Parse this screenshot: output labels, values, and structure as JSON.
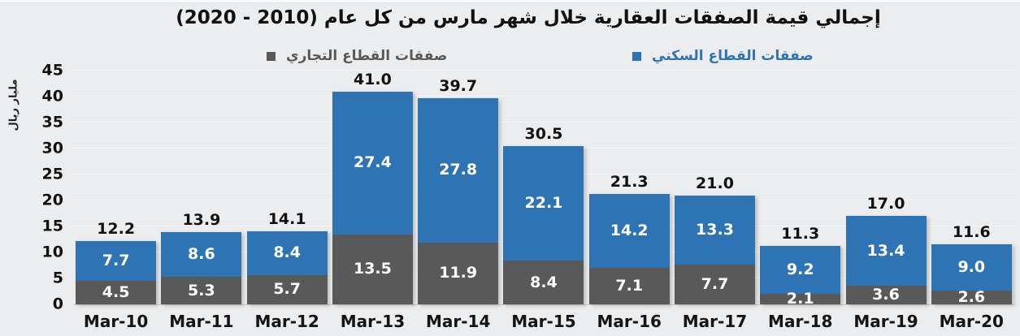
{
  "chart_data": {
    "type": "bar",
    "stacked": true,
    "title": "إجمالي قيمة الصفقات العقارية خلال شهر مارس من كل عام (2010 - 2020)",
    "ylabel": "مليار ريال",
    "categories": [
      "Mar-10",
      "Mar-11",
      "Mar-12",
      "Mar-13",
      "Mar-14",
      "Mar-15",
      "Mar-16",
      "Mar-17",
      "Mar-18",
      "Mar-19",
      "Mar-20"
    ],
    "series": [
      {
        "name": "صفقات القطاع التجاري",
        "key": "commercial",
        "color": "#595959",
        "values": [
          4.5,
          5.3,
          5.7,
          13.5,
          11.9,
          8.4,
          7.1,
          7.7,
          2.1,
          3.6,
          2.6
        ]
      },
      {
        "name": "صفقات القطاع السكني",
        "key": "residential",
        "color": "#2E74B5",
        "values": [
          7.7,
          8.6,
          8.4,
          27.4,
          27.8,
          22.1,
          14.2,
          13.3,
          9.2,
          13.4,
          9.0
        ]
      }
    ],
    "stack_order_bottom_to_top": [
      "commercial",
      "residential"
    ],
    "totals": [
      12.2,
      13.9,
      14.1,
      41.0,
      39.7,
      30.5,
      21.3,
      21.0,
      11.3,
      17.0,
      11.6
    ],
    "ylim": [
      0,
      45
    ],
    "yticks": [
      0,
      5,
      10,
      15,
      20,
      25,
      30,
      35,
      40,
      45
    ],
    "grid": true,
    "legend_position": "top",
    "data_labels": "inside-segments-and-total-above"
  },
  "colors": {
    "background": "#ECEDEF",
    "bar_residential": "#2E74B5",
    "bar_commercial": "#595959",
    "title_text": "#111111",
    "gridline": "#F5F6F8"
  }
}
